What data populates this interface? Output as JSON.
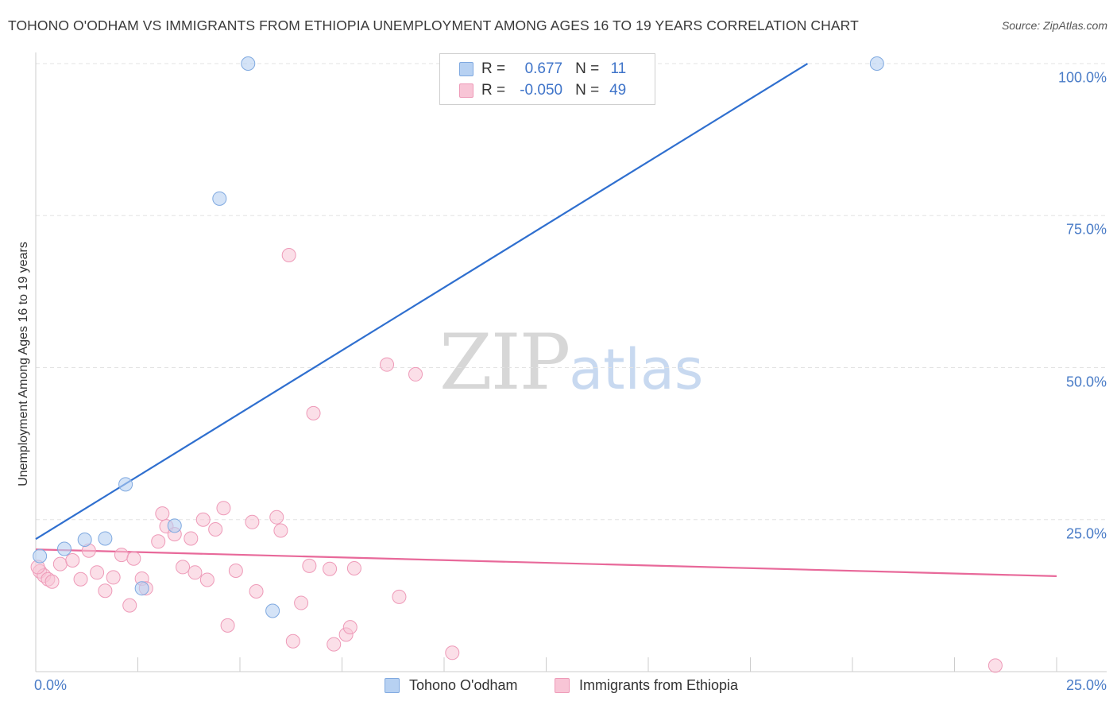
{
  "header": {
    "title": "TOHONO O'ODHAM VS IMMIGRANTS FROM ETHIOPIA UNEMPLOYMENT AMONG AGES 16 TO 19 YEARS CORRELATION CHART",
    "source": "Source: ZipAtlas.com"
  },
  "watermark": {
    "zip": "ZIP",
    "atlas": "atlas"
  },
  "legend": {
    "r_label": "R =",
    "n_label": "N =",
    "series1": {
      "r": "0.677",
      "n": "11"
    },
    "series2": {
      "r": "-0.050",
      "n": "49"
    }
  },
  "bottom_legend": {
    "series1": "Tohono O'odham",
    "series2": "Immigrants from Ethiopia"
  },
  "colors": {
    "series1_fill": "#b7d1f2",
    "series1_stroke": "#7fa9e0",
    "series1_line": "#2f6fcf",
    "series2_fill": "#f8c5d6",
    "series2_stroke": "#ee9ab8",
    "series2_line": "#e8699a",
    "tick_text": "#4a7cc7"
  },
  "chart_data": {
    "type": "scatter",
    "title": "TOHONO O'ODHAM VS IMMIGRANTS FROM ETHIOPIA UNEMPLOYMENT AMONG AGES 16 TO 19 YEARS CORRELATION CHART",
    "xlabel": "",
    "ylabel": "Unemployment Among Ages 16 to 19 years",
    "xlim": [
      0,
      25
    ],
    "ylim": [
      0,
      100
    ],
    "x_tick_labels": [
      "0.0%",
      "25.0%"
    ],
    "y_ticks": [
      {
        "value": 100,
        "label": "100.0%"
      },
      {
        "value": 75,
        "label": "75.0%"
      },
      {
        "value": 50,
        "label": "50.0%"
      },
      {
        "value": 25,
        "label": "25.0%"
      }
    ],
    "series": [
      {
        "name": "Tohono O'odham",
        "r": 0.677,
        "n": 11,
        "points": [
          [
            0.1,
            19.0
          ],
          [
            0.7,
            20.2
          ],
          [
            1.2,
            21.7
          ],
          [
            1.7,
            21.9
          ],
          [
            2.2,
            30.8
          ],
          [
            2.6,
            13.7
          ],
          [
            3.4,
            24.0
          ],
          [
            4.5,
            77.8
          ],
          [
            5.2,
            100.0
          ],
          [
            5.8,
            10.0
          ],
          [
            20.6,
            100.0
          ]
        ],
        "trend": {
          "x": [
            0,
            18.9
          ],
          "y": [
            21.8,
            100.0
          ]
        }
      },
      {
        "name": "Immigrants from Ethiopia",
        "r": -0.05,
        "n": 49,
        "points": [
          [
            0.1,
            16.5
          ],
          [
            0.2,
            15.8
          ],
          [
            0.3,
            15.2
          ],
          [
            0.4,
            14.8
          ],
          [
            0.6,
            17.7
          ],
          [
            0.9,
            18.3
          ],
          [
            1.1,
            15.2
          ],
          [
            1.3,
            19.9
          ],
          [
            1.5,
            16.3
          ],
          [
            1.7,
            13.3
          ],
          [
            1.9,
            15.5
          ],
          [
            2.1,
            19.2
          ],
          [
            2.3,
            10.9
          ],
          [
            2.4,
            18.6
          ],
          [
            2.6,
            15.3
          ],
          [
            2.7,
            13.7
          ],
          [
            3.0,
            21.4
          ],
          [
            3.1,
            26.0
          ],
          [
            3.2,
            23.9
          ],
          [
            3.4,
            22.6
          ],
          [
            3.6,
            17.2
          ],
          [
            3.8,
            21.9
          ],
          [
            3.9,
            16.3
          ],
          [
            4.1,
            25.0
          ],
          [
            4.2,
            15.1
          ],
          [
            4.4,
            23.4
          ],
          [
            4.6,
            26.9
          ],
          [
            4.7,
            7.6
          ],
          [
            4.9,
            16.6
          ],
          [
            5.3,
            24.6
          ],
          [
            5.4,
            13.2
          ],
          [
            5.9,
            25.4
          ],
          [
            6.0,
            23.2
          ],
          [
            6.2,
            68.5
          ],
          [
            6.3,
            5.0
          ],
          [
            6.5,
            11.3
          ],
          [
            6.7,
            17.4
          ],
          [
            6.8,
            42.5
          ],
          [
            7.2,
            16.9
          ],
          [
            7.3,
            4.5
          ],
          [
            7.6,
            6.1
          ],
          [
            7.7,
            7.3
          ],
          [
            7.8,
            17.0
          ],
          [
            8.6,
            50.5
          ],
          [
            8.9,
            12.3
          ],
          [
            9.3,
            48.9
          ],
          [
            10.2,
            3.1
          ],
          [
            23.5,
            1.0
          ],
          [
            0.05,
            17.2
          ]
        ],
        "trend": {
          "x": [
            0,
            25
          ],
          "y": [
            20.1,
            15.7
          ]
        }
      }
    ]
  }
}
